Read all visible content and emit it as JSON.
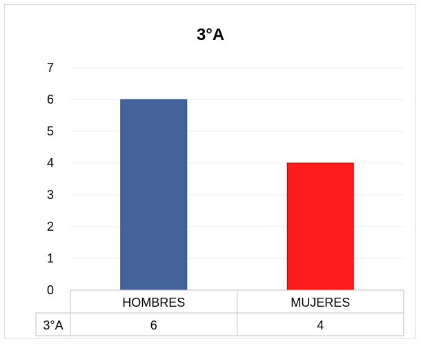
{
  "chart_data": {
    "type": "bar",
    "title": "3°A",
    "categories": [
      "HOMBRES",
      "MUJERES"
    ],
    "series": [
      {
        "name": "3°A",
        "values": [
          6,
          4
        ]
      }
    ],
    "bar_colors": [
      "#44639b",
      "#ff1b1b"
    ],
    "bar_edge_colors": [
      "#2f4c7e",
      "#c00000"
    ],
    "ylim": [
      0,
      7
    ],
    "yticks": [
      "0",
      "1",
      "2",
      "3",
      "4",
      "5",
      "6",
      "7"
    ],
    "grid": true,
    "data_table": {
      "row_label": "3°A",
      "values": [
        "6",
        "4"
      ]
    }
  }
}
